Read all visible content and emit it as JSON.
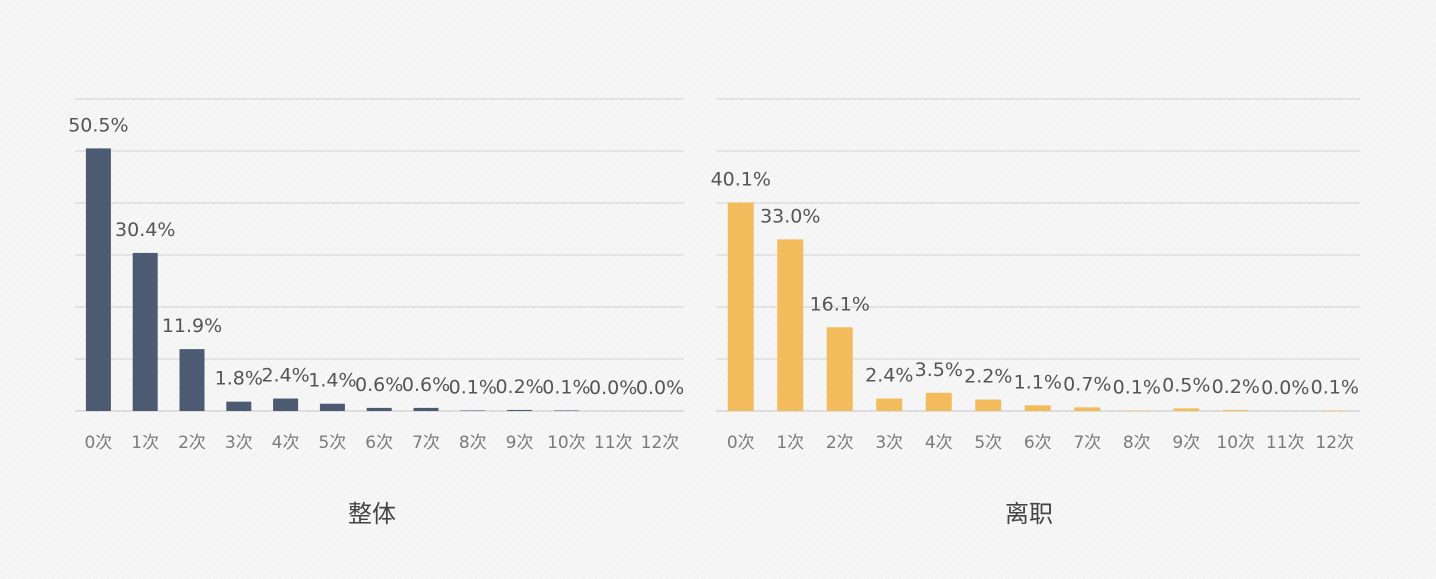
{
  "chart_data": [
    {
      "type": "bar",
      "title": "整体",
      "categories": [
        "0次",
        "1次",
        "2次",
        "3次",
        "4次",
        "5次",
        "6次",
        "7次",
        "8次",
        "9次",
        "10次",
        "11次",
        "12次"
      ],
      "values": [
        50.5,
        30.4,
        11.9,
        1.8,
        2.4,
        1.4,
        0.6,
        0.6,
        0.1,
        0.2,
        0.1,
        0.0,
        0.0
      ],
      "labels": [
        "50.5%",
        "30.4%",
        "11.9%",
        "1.8%",
        "2.4%",
        "1.4%",
        "0.6%",
        "0.6%",
        "0.1%",
        "0.2%",
        "0.1%",
        "0.0%",
        "0.0%"
      ],
      "ylim": [
        0,
        60
      ],
      "gridlines": [
        0,
        10,
        20,
        30,
        40,
        50,
        60
      ],
      "color": "#4d5b72"
    },
    {
      "type": "bar",
      "title": "离职",
      "categories": [
        "0次",
        "1次",
        "2次",
        "3次",
        "4次",
        "5次",
        "6次",
        "7次",
        "8次",
        "9次",
        "10次",
        "11次",
        "12次"
      ],
      "values": [
        40.1,
        33.0,
        16.1,
        2.4,
        3.5,
        2.2,
        1.1,
        0.7,
        0.1,
        0.5,
        0.2,
        0.0,
        0.1
      ],
      "labels": [
        "40.1%",
        "33.0%",
        "16.1%",
        "2.4%",
        "3.5%",
        "2.2%",
        "1.1%",
        "0.7%",
        "0.1%",
        "0.5%",
        "0.2%",
        "0.0%",
        "0.1%"
      ],
      "ylim": [
        0,
        60
      ],
      "gridlines": [
        0,
        10,
        20,
        30,
        40,
        50,
        60
      ],
      "color": "#f2bc5c"
    }
  ]
}
